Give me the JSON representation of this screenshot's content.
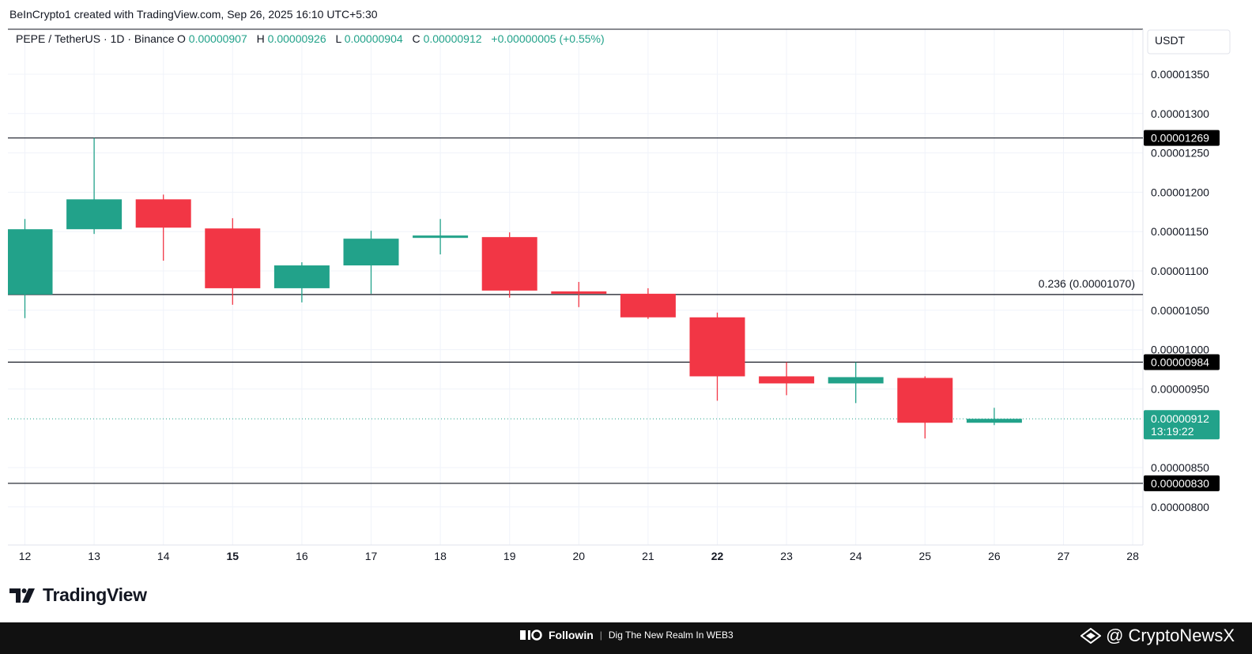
{
  "credit": "BeInCrypto1 created with TradingView.com, Sep 26, 2025 16:10 UTC+5:30",
  "legend": {
    "symbol": "PEPE / TetherUS · 1D · Binance",
    "o_label": "O",
    "o_value": "0.00000907",
    "h_label": "H",
    "h_value": "0.00000926",
    "l_label": "L",
    "l_value": "0.00000904",
    "c_label": "C",
    "c_value": "0.00000912",
    "change": "+0.00000005 (+0.55%)"
  },
  "colors": {
    "up": "#22A28A",
    "down": "#F23645",
    "grid": "#F0F3FA",
    "level_line": "#131722",
    "label_bg": "#000000",
    "text": "#131722",
    "accent_text": "#22A28A"
  },
  "footer": {
    "brand": "Followin",
    "tagline": "Dig The New Realm In WEB3",
    "watermark": "@ CryptoNewsX"
  },
  "logo": {
    "text": "TradingView"
  },
  "chart_data": {
    "type": "candlestick",
    "currency": "USDT",
    "ylim": [
      7.7e-06,
      1.395e-05
    ],
    "y_ticks": [
      "0.00001350",
      "0.00001300",
      "0.00001250",
      "0.00001200",
      "0.00001150",
      "0.00001100",
      "0.00001050",
      "0.00001000",
      "0.00000950",
      "0.00000850",
      "0.00000800"
    ],
    "x_ticks": [
      {
        "label": "12",
        "bold": false
      },
      {
        "label": "13",
        "bold": false
      },
      {
        "label": "14",
        "bold": false
      },
      {
        "label": "15",
        "bold": true
      },
      {
        "label": "16",
        "bold": false
      },
      {
        "label": "17",
        "bold": false
      },
      {
        "label": "18",
        "bold": false
      },
      {
        "label": "19",
        "bold": false
      },
      {
        "label": "20",
        "bold": false
      },
      {
        "label": "21",
        "bold": false
      },
      {
        "label": "22",
        "bold": true
      },
      {
        "label": "23",
        "bold": false
      },
      {
        "label": "24",
        "bold": false
      },
      {
        "label": "25",
        "bold": false
      },
      {
        "label": "26",
        "bold": false
      },
      {
        "label": "27",
        "bold": false
      },
      {
        "label": "28",
        "bold": false
      }
    ],
    "candles": [
      {
        "date": "12",
        "open": 1.07e-05,
        "high": 1.166e-05,
        "low": 1.04e-05,
        "close": 1.153e-05
      },
      {
        "date": "13",
        "open": 1.153e-05,
        "high": 1.269e-05,
        "low": 1.147e-05,
        "close": 1.191e-05
      },
      {
        "date": "14",
        "open": 1.191e-05,
        "high": 1.197e-05,
        "low": 1.113e-05,
        "close": 1.155e-05
      },
      {
        "date": "15",
        "open": 1.154e-05,
        "high": 1.167e-05,
        "low": 1.057e-05,
        "close": 1.078e-05
      },
      {
        "date": "16",
        "open": 1.078e-05,
        "high": 1.111e-05,
        "low": 1.06e-05,
        "close": 1.107e-05
      },
      {
        "date": "17",
        "open": 1.107e-05,
        "high": 1.151e-05,
        "low": 1.071e-05,
        "close": 1.141e-05
      },
      {
        "date": "18",
        "open": 1.142e-05,
        "high": 1.166e-05,
        "low": 1.121e-05,
        "close": 1.145e-05
      },
      {
        "date": "19",
        "open": 1.143e-05,
        "high": 1.149e-05,
        "low": 1.066e-05,
        "close": 1.075e-05
      },
      {
        "date": "20",
        "open": 1.074e-05,
        "high": 1.086e-05,
        "low": 1.054e-05,
        "close": 1.071e-05
      },
      {
        "date": "21",
        "open": 1.071e-05,
        "high": 1.078e-05,
        "low": 1.039e-05,
        "close": 1.041e-05
      },
      {
        "date": "22",
        "open": 1.041e-05,
        "high": 1.047e-05,
        "low": 9.35e-06,
        "close": 9.66e-06
      },
      {
        "date": "23",
        "open": 9.66e-06,
        "high": 9.84e-06,
        "low": 9.42e-06,
        "close": 9.57e-06
      },
      {
        "date": "24",
        "open": 9.57e-06,
        "high": 9.84e-06,
        "low": 9.32e-06,
        "close": 9.65e-06
      },
      {
        "date": "25",
        "open": 9.64e-06,
        "high": 9.66e-06,
        "low": 8.87e-06,
        "close": 9.07e-06
      },
      {
        "date": "26",
        "open": 9.07e-06,
        "high": 9.26e-06,
        "low": 9.04e-06,
        "close": 9.12e-06
      }
    ],
    "levels": [
      {
        "value": 1.269e-05,
        "label": "0.00001269",
        "type": "price-tag"
      },
      {
        "value": 1.07e-05,
        "label": "0.236 (0.00001070)",
        "type": "fib"
      },
      {
        "value": 9.84e-06,
        "label": "0.00000984",
        "type": "price-tag"
      },
      {
        "value": 8.3e-06,
        "label": "0.00000830",
        "type": "price-tag"
      }
    ],
    "current": {
      "value": 9.12e-06,
      "label": "0.00000912",
      "countdown": "13:19:22"
    }
  }
}
